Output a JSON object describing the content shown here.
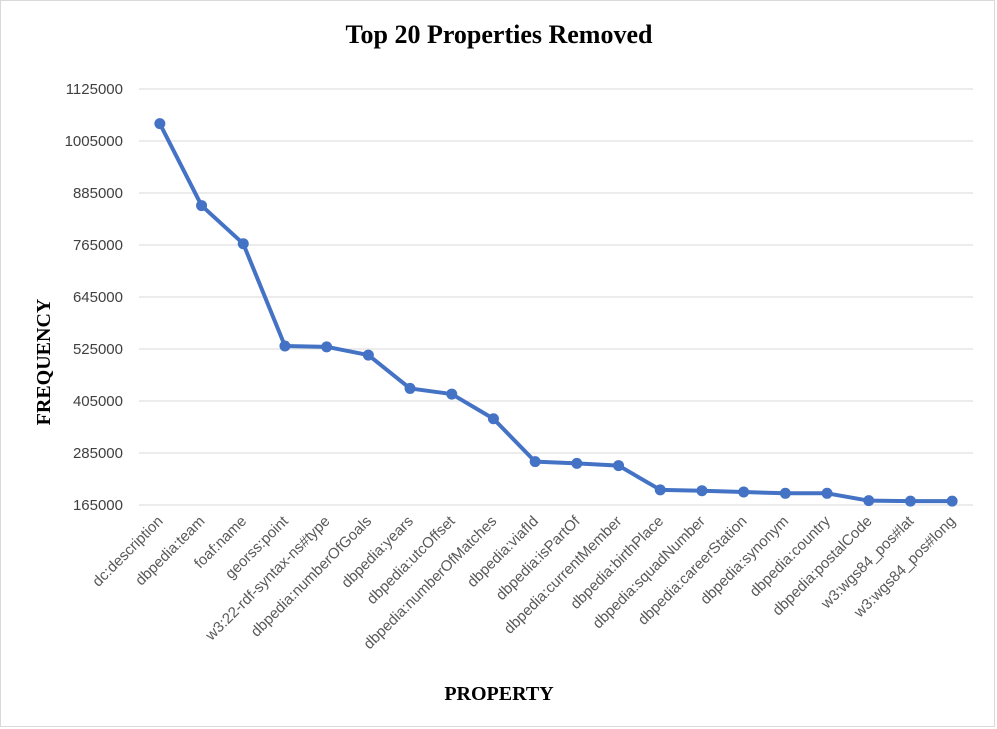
{
  "chart_data": {
    "type": "line",
    "title": "Top 20 Properties Removed",
    "xlabel": "PROPERTY",
    "ylabel": "FREQUENCY",
    "categories": [
      "dc:description",
      "dbpedia:team",
      "foaf:name",
      "georss:point",
      "w3:22-rdf-syntax-ns#type",
      "dbpedia:numberOfGoals",
      "dbpedia:years",
      "dbpedia:utcOffset",
      "dbpedia:numberOfMatches",
      "dbpedia:viafId",
      "dbpedia:isPartOf",
      "dbpedia:currentMember",
      "dbpedia:birthPlace",
      "dbpedia:squadNumber",
      "dbpedia:careerStation",
      "dbpedia:synonym",
      "dbpedia:country",
      "dbpedia:postalCode",
      "w3:wgs84_pos#lat",
      "w3:wgs84_pos#long"
    ],
    "series": [
      {
        "values": [
          1045000,
          856000,
          768000,
          532000,
          530000,
          511000,
          434000,
          421000,
          364000,
          265000,
          261000,
          256000,
          200000,
          198000,
          195000,
          192000,
          192000,
          175000,
          174000,
          174000
        ]
      }
    ],
    "yticks": [
      "1125000",
      "1005000",
      "885000",
      "765000",
      "645000",
      "525000",
      "405000",
      "285000",
      "165000"
    ],
    "ylim": [
      165000,
      1125000
    ],
    "grid": true,
    "legend": "none",
    "colors": {
      "series": "#4472c4",
      "grid": "#d9d9d9"
    }
  }
}
